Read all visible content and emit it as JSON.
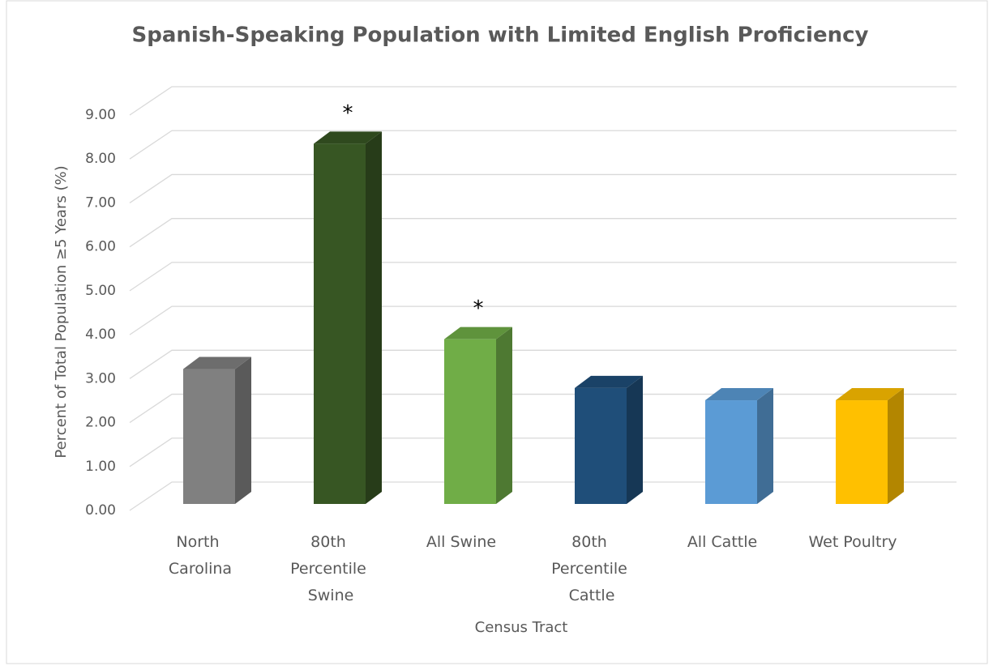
{
  "chart_data": {
    "type": "bar3d",
    "title": "Spanish-Speaking Population with Limited English Proficiency",
    "x_label": "Census Tract",
    "y_label": "Percent of Total Population ≥5 Years (%)",
    "categories": [
      "North Carolina",
      "80th Percentile Swine",
      "All Swine",
      "80th Percentile Cattle",
      "All Cattle",
      "Wet Poultry"
    ],
    "values": [
      3.07,
      8.2,
      3.75,
      2.64,
      2.36,
      2.36
    ],
    "colors": [
      "#808080",
      "#375623",
      "#70ad47",
      "#1f4e79",
      "#5b9bd5",
      "#ffc000"
    ],
    "annotations": [
      {
        "text": "*",
        "category": "80th Percentile Swine"
      },
      {
        "text": "*",
        "category": "All Swine"
      }
    ],
    "ylim": [
      0,
      9
    ],
    "yticks": [
      {
        "value": 0,
        "label": "0.00"
      },
      {
        "value": 1,
        "label": "1.00"
      },
      {
        "value": 2,
        "label": "2.00"
      },
      {
        "value": 3,
        "label": "3.00"
      },
      {
        "value": 4,
        "label": "4.00"
      },
      {
        "value": 5,
        "label": "5.00"
      },
      {
        "value": 6,
        "label": "6.00"
      },
      {
        "value": 7,
        "label": "7.00"
      },
      {
        "value": 8,
        "label": "8.00"
      },
      {
        "value": 9,
        "label": "9.00"
      }
    ],
    "grid": true
  }
}
